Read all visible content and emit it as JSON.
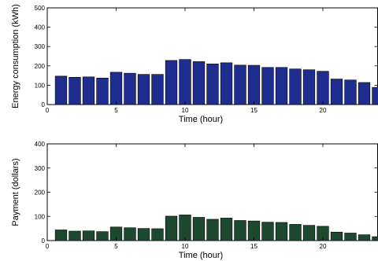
{
  "chart_data": [
    {
      "type": "bar",
      "x": [
        1,
        2,
        3,
        4,
        5,
        6,
        7,
        8,
        9,
        10,
        11,
        12,
        13,
        14,
        15,
        16,
        17,
        18,
        19,
        20,
        21,
        22,
        23,
        24
      ],
      "values": [
        147,
        141,
        143,
        137,
        167,
        162,
        156,
        156,
        228,
        233,
        222,
        210,
        216,
        204,
        203,
        192,
        192,
        184,
        180,
        172,
        132,
        127,
        114,
        89
      ],
      "color": "#1f2d8f",
      "xlabel": "Time (hour)",
      "ylabel": "Energy consumption (kWh)",
      "xlim": [
        0,
        24
      ],
      "ylim": [
        0,
        500
      ],
      "xticks": [
        0,
        5,
        10,
        15,
        20
      ],
      "yticks": [
        0,
        100,
        200,
        300,
        400,
        500
      ],
      "grid": false
    },
    {
      "type": "bar",
      "x": [
        1,
        2,
        3,
        4,
        5,
        6,
        7,
        8,
        9,
        10,
        11,
        12,
        13,
        14,
        15,
        16,
        17,
        18,
        19,
        20,
        21,
        22,
        23,
        24
      ],
      "values": [
        44,
        39,
        40,
        37,
        56,
        53,
        50,
        49,
        101,
        106,
        96,
        88,
        93,
        83,
        81,
        76,
        75,
        67,
        63,
        59,
        35,
        31,
        24,
        16
      ],
      "color": "#1d4a2e",
      "xlabel": "Time (hour)",
      "ylabel": "Payment (dollars)",
      "xlim": [
        0,
        24
      ],
      "ylim": [
        0,
        400
      ],
      "xticks": [
        0,
        5,
        10,
        15,
        20
      ],
      "yticks": [
        0,
        100,
        200,
        300,
        400
      ],
      "grid": false
    }
  ]
}
